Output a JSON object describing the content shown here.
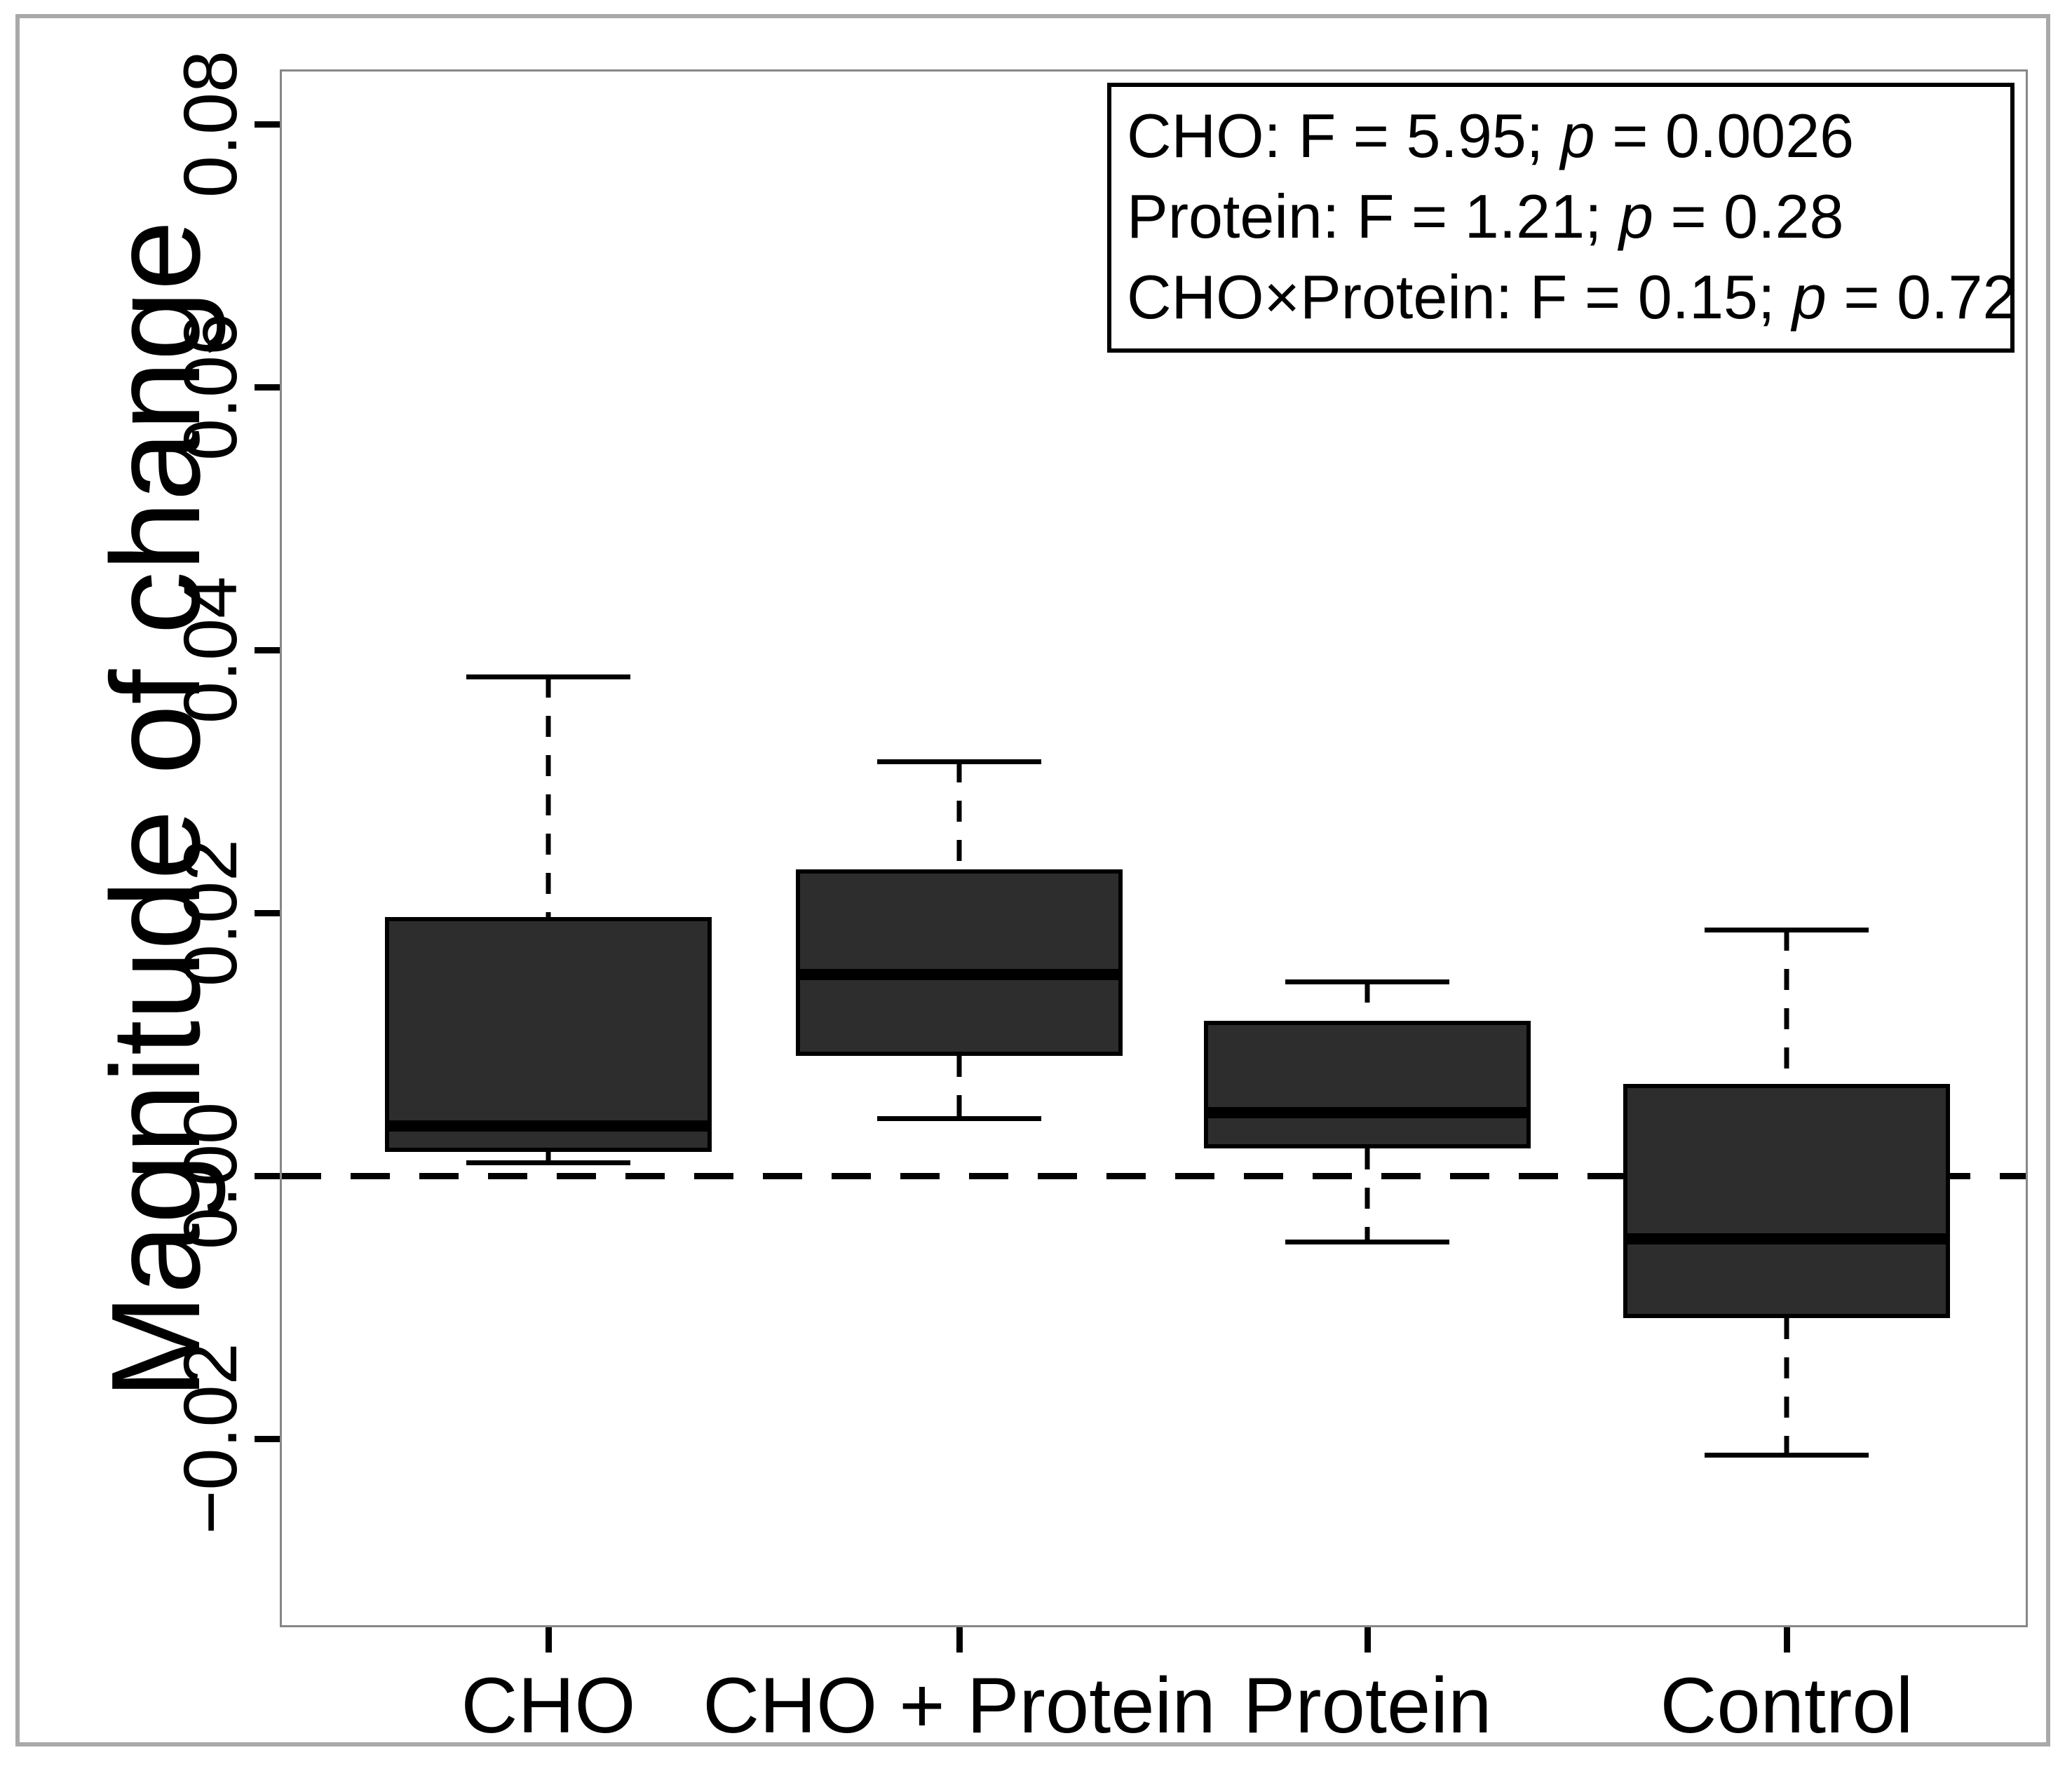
{
  "figure": {
    "background": "#ffffff",
    "outer_frame_color": "#a9a9a9",
    "plot_border_color": "#878787",
    "box_fill_color": "#2d2d2d",
    "box_border_color": "#000000",
    "line_color": "#000000"
  },
  "chart_data": {
    "type": "box",
    "title": "",
    "xlabel": "",
    "ylabel": "Magnitude of change",
    "categories": [
      "CHO",
      "CHO + Protein",
      "Protein",
      "Control"
    ],
    "ylim": [
      -0.0344,
      0.0842
    ],
    "grid": false,
    "yticks": {
      "values": [
        0.08,
        0.06,
        0.04,
        0.02,
        0.0,
        -0.02
      ],
      "labels": [
        "0.08",
        "0.06",
        "0.04",
        "0.02",
        "0.00",
        "−0.02"
      ]
    },
    "reference_line": {
      "y": 0.0,
      "style": "dashed"
    },
    "boxes": [
      {
        "category": "CHO",
        "whisker_low": 0.001,
        "q1": 0.0018,
        "median": 0.0038,
        "q3": 0.0197,
        "whisker_high": 0.038
      },
      {
        "category": "CHO + Protein",
        "whisker_low": 0.0044,
        "q1": 0.0091,
        "median": 0.0153,
        "q3": 0.0233,
        "whisker_high": 0.0315
      },
      {
        "category": "Protein",
        "whisker_low": -0.005,
        "q1": 0.0021,
        "median": 0.0048,
        "q3": 0.0118,
        "whisker_high": 0.0148
      },
      {
        "category": "Control",
        "whisker_low": -0.0212,
        "q1": -0.0108,
        "median": -0.0048,
        "q3": 0.007,
        "whisker_high": 0.0187
      }
    ],
    "annotations": [
      "CHO: F = 5.95; p = 0.0026",
      "Protein: F = 1.21; p = 0.28",
      "CHO×Protein: F = 0.15; p = 0.72"
    ],
    "annotation_box_position": "top-right"
  },
  "stats_box": {
    "p_symbol": "p",
    "lines": [
      {
        "before": "CHO: F = 5.95; ",
        "after": " = 0.0026"
      },
      {
        "before": "Protein: F = 1.21; ",
        "after": " = 0.28"
      },
      {
        "before": "CHO×Protein: F = 0.15; ",
        "after": " = 0.72"
      }
    ]
  }
}
